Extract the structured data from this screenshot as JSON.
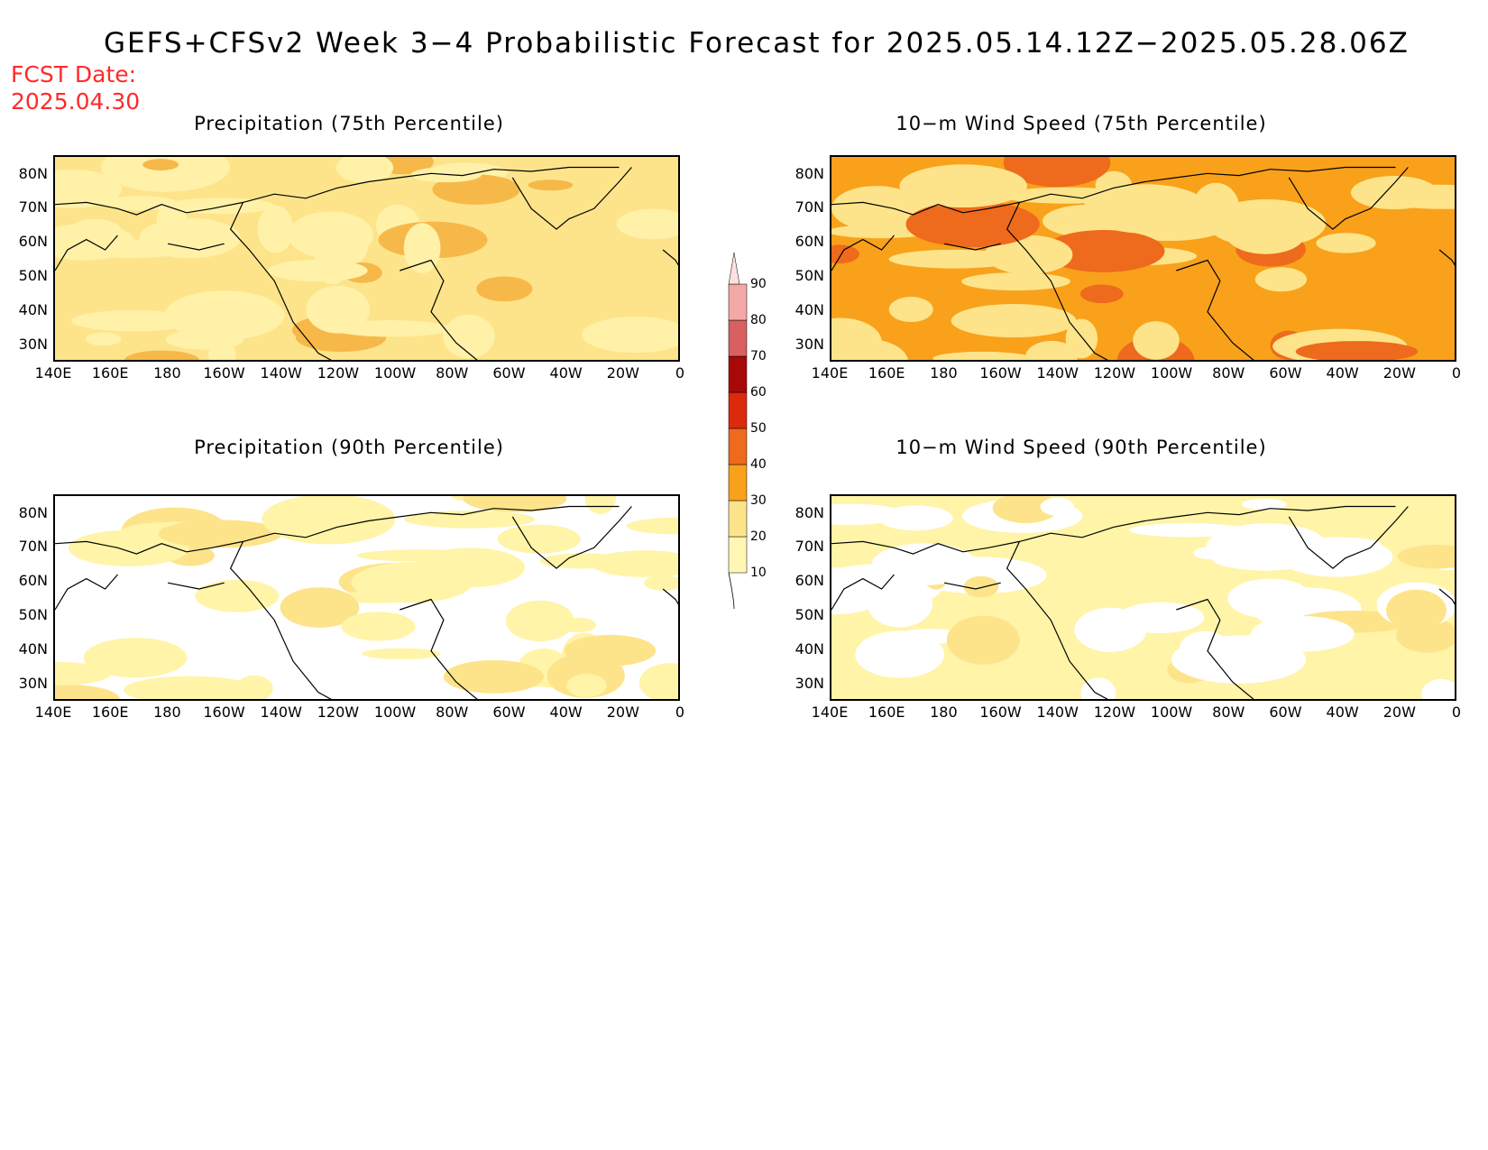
{
  "title": "GEFS+CFSv2 Week 3−4 Probabilistic Forecast for 2025.05.14.12Z−2025.05.28.06Z",
  "fcst_label": "FCST Date:",
  "fcst_date": "2025.04.30",
  "panels": [
    {
      "title": "Precipitation (75th Percentile)",
      "base": "#fde48a",
      "spots": "#fff1a8",
      "accent": "#f7b84a"
    },
    {
      "title": "10−m Wind Speed (75th Percentile)",
      "base": "#f9a11b",
      "spots": "#fde48a",
      "accent": "#ee6a1c"
    },
    {
      "title": "Precipitation (90th Percentile)",
      "base": "#ffffff",
      "spots": "#fff4a8",
      "accent": "#fde48a"
    },
    {
      "title": "10−m Wind Speed (90th Percentile)",
      "base": "#fff4a8",
      "spots": "#ffffff",
      "accent": "#fde48a"
    }
  ],
  "lat_ticks": [
    "80N",
    "70N",
    "60N",
    "50N",
    "40N",
    "30N"
  ],
  "lon_ticks": [
    "140E",
    "160E",
    "180",
    "160W",
    "140W",
    "120W",
    "100W",
    "80W",
    "60W",
    "40W",
    "20W",
    "0"
  ],
  "colorbar": {
    "levels": [
      "10",
      "20",
      "30",
      "40",
      "50",
      "60",
      "70",
      "80",
      "90"
    ],
    "colors": [
      "#fff7b3",
      "#fde48a",
      "#f9a11b",
      "#ee6a1c",
      "#dc2a0c",
      "#a80808",
      "#d86060",
      "#f4a8a8",
      "#ffe0e0"
    ]
  }
}
